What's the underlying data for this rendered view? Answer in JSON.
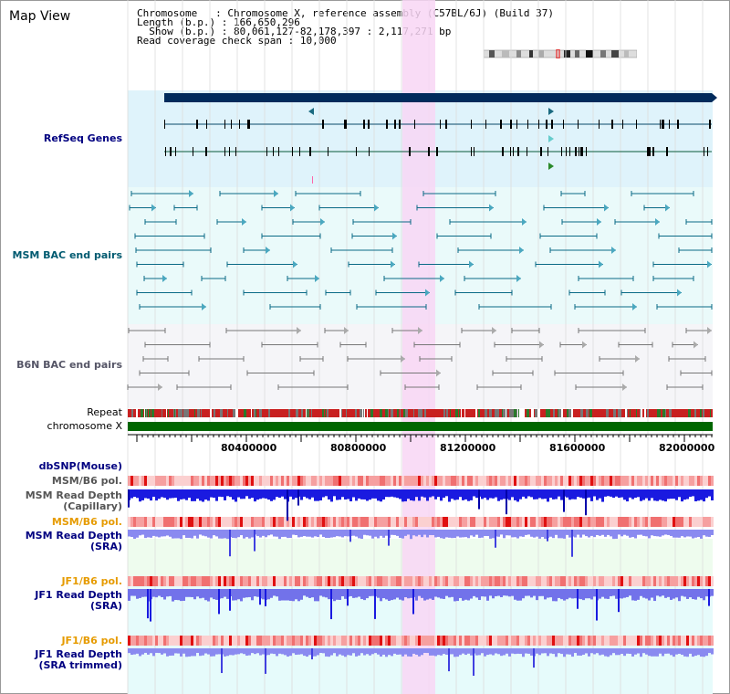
{
  "title": "Map View",
  "info": {
    "chromosome_key": "Chromosome",
    "chromosome_val": "Chromosome X, reference assembly (C57BL/6J) (Build 37)",
    "length_key": "Length (b.p.)",
    "length_val": "166,650,296",
    "show_key": "Show (b.p.)",
    "show_val": "80,061,127-82,178,397 : 2,117,271 bp",
    "span_key": "Read coverage check span",
    "span_val": "10,000"
  },
  "tracks": {
    "refseq": "RefSeq Genes",
    "msm_bac": "MSM BAC end pairs",
    "b6n_bac": "B6N BAC end pairs",
    "repeat": "Repeat",
    "chromosome": "chromosome X",
    "dbsnp": "dbSNP(Mouse)",
    "msm_pol1": "MSM/B6 pol.",
    "msm_depth_cap_1": "MSM Read Depth",
    "msm_depth_cap_2": "(Capillary)",
    "msm_pol2": "MSM/B6 pol.",
    "msm_depth_sra_1": "MSM Read Depth",
    "msm_depth_sra_2": "(SRA)",
    "jf1_pol1": "JF1/B6 pol.",
    "jf1_depth_sra_1": "JF1 Read Depth",
    "jf1_depth_sra_2": "(SRA)",
    "jf1_pol2": "JF1/B6 pol.",
    "jf1_depth_trim_1": "JF1 Read Depth",
    "jf1_depth_trim_2": "(SRA trimmed)"
  },
  "ruler": {
    "ticks": [
      "80400000",
      "80800000",
      "81200000",
      "81600000",
      "82000000"
    ]
  },
  "colors": {
    "gene_bg": "#dff3fb",
    "bac_bg": "#eafafa",
    "b6n_bg": "#f5f5f8",
    "highlight": "#f8d6f4",
    "navy": "#002b5c",
    "depth_blue": "#1a1ae0",
    "depth_light": "#8a8af0",
    "green": "#006600",
    "label_blue": "#000080",
    "label_orange": "#e69b00"
  }
}
